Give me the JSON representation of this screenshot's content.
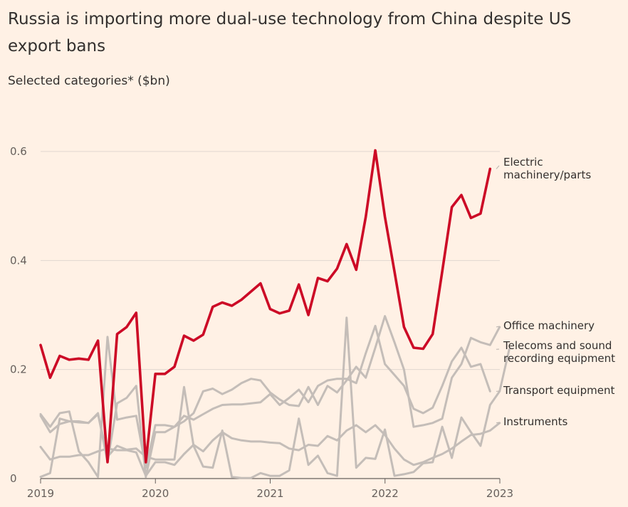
{
  "title": "Russia is importing more dual-use technology from China despite US export bans",
  "subtitle": "Selected categories* ($bn)",
  "chart_data": {
    "type": "line",
    "x_start": 2019.0,
    "x_step": 0.0833,
    "xlim": [
      2019,
      2023
    ],
    "ylim": [
      0,
      0.6
    ],
    "x_ticks": [
      "2019",
      "2020",
      "2021",
      "2022",
      "2023"
    ],
    "y_ticks": [
      "0",
      "0.2",
      "0.4",
      "0.6"
    ],
    "series": [
      {
        "name": "Transport equipment",
        "label": "Transport equipment",
        "color": "#c4bdb8",
        "values": [
          0.118,
          0.095,
          0.12,
          0.123,
          0.05,
          0.03,
          0.003,
          0.26,
          0.108,
          0.112,
          0.115,
          0.02,
          0.098,
          0.098,
          0.095,
          0.115,
          0.108,
          0.118,
          0.128,
          0.135,
          0.136,
          0.136,
          0.138,
          0.14,
          0.155,
          0.135,
          0.148,
          0.163,
          0.14,
          0.17,
          0.18,
          0.183,
          0.183,
          0.175,
          0.23,
          0.28,
          0.21,
          0.19,
          0.17,
          0.128,
          0.12,
          0.13,
          0.17,
          0.215,
          0.24,
          0.205,
          0.21,
          0.16
        ]
      },
      {
        "name": "Office machinery",
        "label": "Office machinery",
        "color": "#c4bdb8",
        "values": [
          0.003,
          0.01,
          0.11,
          0.105,
          0.105,
          0.102,
          0.12,
          0.03,
          0.138,
          0.148,
          0.17,
          0.003,
          0.085,
          0.085,
          0.095,
          0.105,
          0.12,
          0.16,
          0.165,
          0.155,
          0.163,
          0.175,
          0.183,
          0.18,
          0.158,
          0.145,
          0.135,
          0.133,
          0.168,
          0.135,
          0.17,
          0.158,
          0.18,
          0.205,
          0.185,
          0.24,
          0.298,
          0.25,
          0.2,
          0.095,
          0.098,
          0.102,
          0.11,
          0.185,
          0.21,
          0.258,
          0.25,
          0.245,
          0.278
        ]
      },
      {
        "name": "Telecoms and sound recording equipment",
        "label": "Telecoms and sound recording equipment",
        "color": "#c4bdb8",
        "values": [
          0.115,
          0.085,
          0.1,
          0.105,
          0.103,
          0.102,
          0.118,
          0.04,
          0.06,
          0.053,
          0.055,
          0.04,
          0.035,
          0.035,
          0.035,
          0.168,
          0.06,
          0.022,
          0.02,
          0.088,
          0.003,
          0.001,
          0.001,
          0.01,
          0.005,
          0.005,
          0.015,
          0.11,
          0.025,
          0.042,
          0.01,
          0.005,
          0.295,
          0.02,
          0.038,
          0.036,
          0.09,
          0.005,
          0.008,
          0.012,
          0.028,
          0.03,
          0.095,
          0.038,
          0.112,
          0.085,
          0.06,
          0.135,
          0.16,
          0.237
        ]
      },
      {
        "name": "Instruments",
        "label": "Instruments",
        "color": "#c4bdb8",
        "values": [
          0.058,
          0.035,
          0.04,
          0.04,
          0.043,
          0.043,
          0.05,
          0.055,
          0.052,
          0.052,
          0.048,
          0.005,
          0.03,
          0.03,
          0.025,
          0.045,
          0.062,
          0.05,
          0.07,
          0.085,
          0.074,
          0.07,
          0.068,
          0.068,
          0.066,
          0.065,
          0.055,
          0.052,
          0.062,
          0.06,
          0.078,
          0.07,
          0.088,
          0.098,
          0.085,
          0.098,
          0.08,
          0.055,
          0.035,
          0.025,
          0.03,
          0.038,
          0.045,
          0.055,
          0.068,
          0.08,
          0.082,
          0.088,
          0.102
        ]
      },
      {
        "name": "Electric machinery/parts",
        "label": "Electric machinery/parts",
        "color": "#cc0a26",
        "values": [
          0.245,
          0.185,
          0.225,
          0.218,
          0.22,
          0.218,
          0.253,
          0.03,
          0.265,
          0.278,
          0.304,
          0.03,
          0.192,
          0.192,
          0.205,
          0.262,
          0.253,
          0.264,
          0.315,
          0.323,
          0.317,
          0.328,
          0.343,
          0.358,
          0.311,
          0.303,
          0.308,
          0.356,
          0.3,
          0.368,
          0.362,
          0.385,
          0.43,
          0.383,
          0.48,
          0.602,
          0.48,
          0.38,
          0.278,
          0.24,
          0.238,
          0.265,
          0.38,
          0.498,
          0.52,
          0.478,
          0.486,
          0.568
        ]
      }
    ]
  }
}
